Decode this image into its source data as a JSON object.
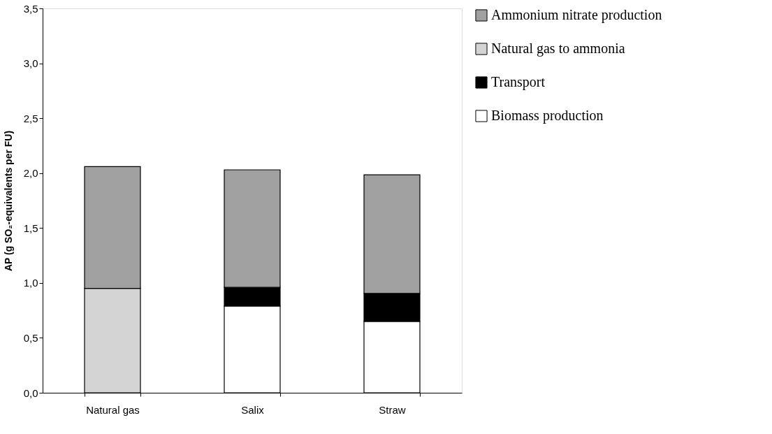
{
  "chart_data": {
    "type": "bar",
    "stacked": true,
    "ylabel": "AP (g SO₂-equivalents per FU)",
    "categories": [
      "Natural gas",
      "Salix",
      "Straw"
    ],
    "series": [
      {
        "name": "Biomass production",
        "color": "#ffffff",
        "values": [
          null,
          0.79,
          0.65
        ]
      },
      {
        "name": "Transport",
        "color": "#000000",
        "values": [
          null,
          0.17,
          0.255
        ]
      },
      {
        "name": "Natural gas to ammonia",
        "color": "#d4d4d4",
        "values": [
          0.95,
          null,
          null
        ]
      },
      {
        "name": "Ammonium nitrate production",
        "color": "#a0a0a0",
        "values": [
          1.11,
          1.07,
          1.08
        ]
      }
    ],
    "ylim": [
      0,
      3.5
    ],
    "yticks": [
      {
        "value": 0,
        "label": "0,0"
      },
      {
        "value": 0.5,
        "label": "0,5"
      },
      {
        "value": 1,
        "label": "1,0"
      },
      {
        "value": 1.5,
        "label": "1,5"
      },
      {
        "value": 2,
        "label": "2,0"
      },
      {
        "value": 2.5,
        "label": "2,5"
      },
      {
        "value": 3,
        "label": "3,0"
      },
      {
        "value": 3.5,
        "label": "3,5"
      }
    ],
    "grid": false,
    "legend": "top right"
  }
}
